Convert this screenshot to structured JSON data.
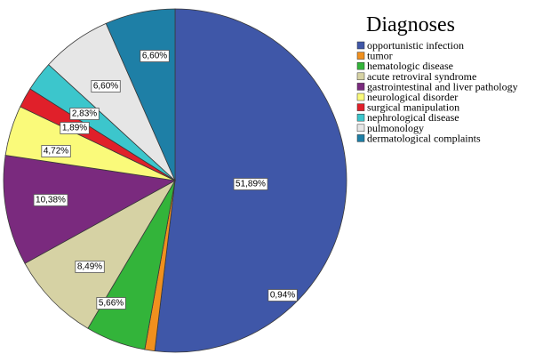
{
  "chart_data": {
    "type": "pie",
    "title": "Diagnoses",
    "legend_position": "right",
    "slices": [
      {
        "label": "opportunistic infection",
        "value": 51.89,
        "value_label": "51,89%",
        "color": "#3f57a8"
      },
      {
        "label": "tumor",
        "value": 0.94,
        "value_label": "0,94%",
        "color": "#f0901e"
      },
      {
        "label": "hematologic disease",
        "value": 5.66,
        "value_label": "5,66%",
        "color": "#33b43a"
      },
      {
        "label": "acute retroviral syndrome",
        "value": 8.49,
        "value_label": "8,49%",
        "color": "#d6d2a4"
      },
      {
        "label": "gastrointestinal and liver pathology",
        "value": 10.38,
        "value_label": "10,38%",
        "color": "#7a2a7e"
      },
      {
        "label": "neurological disorder",
        "value": 4.72,
        "value_label": "4,72%",
        "color": "#fafa7a"
      },
      {
        "label": "surgical manipulation",
        "value": 1.89,
        "value_label": "1,89%",
        "color": "#e0202a"
      },
      {
        "label": "nephrological disease",
        "value": 2.83,
        "value_label": "2,83%",
        "color": "#3cc6cc"
      },
      {
        "label": "pulmonology",
        "value": 6.6,
        "value_label": "6,60%",
        "color": "#e6e6e6"
      },
      {
        "label": "dermatological complaints",
        "value": 6.6,
        "value_label": "6,60%",
        "color": "#1e7fa6"
      }
    ]
  }
}
